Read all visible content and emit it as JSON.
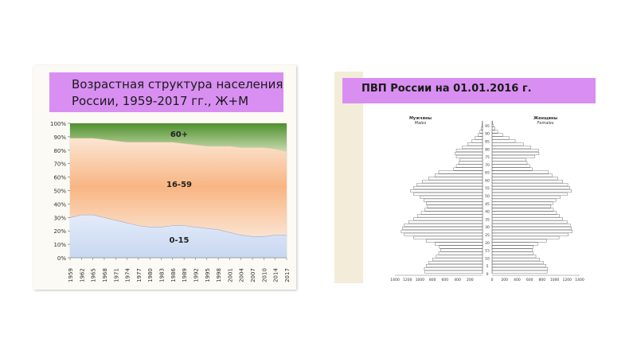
{
  "chart_data": [
    {
      "type": "area",
      "title": "Возрастная структура населения России, 1959-2017 гг., Ж+М",
      "xlabel": "",
      "ylabel": "",
      "ylim": [
        0,
        100
      ],
      "y_ticks": [
        "0%",
        "10%",
        "20%",
        "30%",
        "40%",
        "50%",
        "60%",
        "70%",
        "80%",
        "90%",
        "100%"
      ],
      "x": [
        1959,
        1962,
        1965,
        1968,
        1971,
        1974,
        1977,
        1980,
        1983,
        1986,
        1989,
        1992,
        1995,
        1998,
        2001,
        2004,
        2007,
        2010,
        2014,
        2017
      ],
      "series": [
        {
          "name": "0-15",
          "values": [
            30,
            32,
            32,
            30,
            28,
            26,
            24,
            23,
            23,
            24,
            24,
            23,
            22,
            21,
            19,
            17,
            16,
            16,
            17,
            17
          ],
          "color": "#c9d9f2"
        },
        {
          "name": "16-59",
          "values": [
            59,
            57,
            57,
            58,
            59,
            60,
            62,
            63,
            63,
            62,
            61,
            61,
            61,
            62,
            64,
            65,
            66,
            66,
            64,
            62
          ],
          "color": "#f7b98a"
        },
        {
          "name": "60+",
          "values": [
            11,
            11,
            11,
            12,
            13,
            14,
            14,
            14,
            14,
            14,
            15,
            16,
            17,
            17,
            17,
            18,
            18,
            18,
            19,
            21
          ],
          "color": "#7aa84a"
        }
      ],
      "legend_position": "inline",
      "stacked": true,
      "grid": false
    },
    {
      "type": "bar",
      "orientation": "horizontal",
      "title": "ПВП России на 01.01.2016 г.",
      "left_label": "Мужчины",
      "left_sublabel": "Males",
      "right_label": "Женщины",
      "right_sublabel": "Females",
      "x_ticks_left": [
        "1400",
        "1200",
        "1000",
        "800",
        "600",
        "400",
        "200"
      ],
      "x_ticks_right": [
        "0",
        "200",
        "400",
        "600",
        "800",
        "1000",
        "1200",
        "1400"
      ],
      "age_ticks": [
        "0",
        "5",
        "10",
        "15",
        "20",
        "25",
        "30",
        "35",
        "40",
        "45",
        "50",
        "55",
        "60",
        "65",
        "70",
        "75",
        "80",
        "85",
        "90",
        "95"
      ],
      "xlim": [
        0,
        1400
      ],
      "ages": [
        0,
        2,
        4,
        6,
        8,
        10,
        12,
        14,
        16,
        18,
        20,
        22,
        24,
        26,
        28,
        30,
        32,
        34,
        36,
        38,
        40,
        42,
        44,
        46,
        48,
        50,
        52,
        54,
        56,
        58,
        60,
        62,
        64,
        66,
        68,
        70,
        72,
        74,
        76,
        78,
        80,
        82,
        84,
        86,
        88,
        90,
        92,
        94,
        96
      ],
      "males": [
        920,
        930,
        900,
        860,
        800,
        740,
        700,
        670,
        690,
        760,
        900,
        1100,
        1250,
        1300,
        1280,
        1250,
        1180,
        1100,
        1040,
        980,
        920,
        880,
        900,
        940,
        1000,
        1100,
        1150,
        1100,
        1050,
        960,
        860,
        760,
        700,
        460,
        420,
        380,
        360,
        420,
        440,
        420,
        320,
        240,
        170,
        120,
        70,
        40,
        20,
        10,
        5
      ],
      "females": [
        880,
        890,
        860,
        820,
        760,
        700,
        660,
        640,
        660,
        730,
        870,
        1070,
        1220,
        1280,
        1270,
        1250,
        1200,
        1130,
        1080,
        1030,
        980,
        940,
        970,
        1020,
        1090,
        1200,
        1270,
        1240,
        1210,
        1130,
        1050,
        960,
        900,
        640,
        600,
        560,
        540,
        680,
        750,
        740,
        620,
        500,
        370,
        270,
        170,
        90,
        45,
        20,
        8
      ],
      "legend_position": "top",
      "grid": false
    }
  ]
}
